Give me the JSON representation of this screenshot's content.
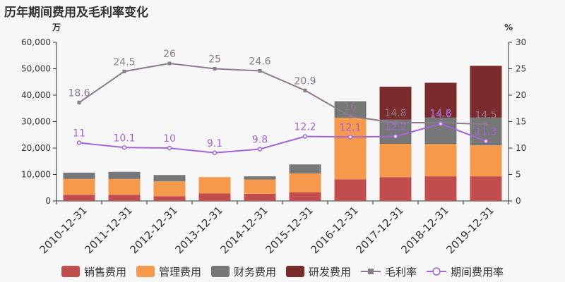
{
  "title": "历年期间费用及毛利率变化",
  "chart_data": {
    "type": "bar",
    "stacked": true,
    "categories": [
      "2010-12-31",
      "2011-12-31",
      "2012-12-31",
      "2013-12-31",
      "2014-12-31",
      "2015-12-31",
      "2016-12-31",
      "2017-12-31",
      "2018-12-31",
      "2019-12-31"
    ],
    "left_axis": {
      "unit": "万",
      "ylim": [
        0,
        60000
      ],
      "ticks": [
        "0",
        "10,000",
        "20,000",
        "30,000",
        "40,000",
        "50,000",
        "60,000"
      ]
    },
    "right_axis": {
      "unit": "%",
      "ylim": [
        0,
        30
      ],
      "ticks": [
        "0",
        "5",
        "10",
        "15",
        "20",
        "25",
        "30"
      ]
    },
    "series": [
      {
        "name": "销售费用",
        "type": "bar",
        "color": "#c04e4e",
        "values": [
          2300,
          2300,
          1800,
          2800,
          2700,
          3300,
          8200,
          9000,
          9300,
          9300
        ]
      },
      {
        "name": "管理费用",
        "type": "bar",
        "color": "#f59a4c",
        "values": [
          6000,
          6000,
          5600,
          6200,
          5400,
          7100,
          23300,
          12600,
          12200,
          11700
        ]
      },
      {
        "name": "财务费用",
        "type": "bar",
        "color": "#777777",
        "values": [
          2400,
          2700,
          2400,
          0,
          1200,
          3400,
          6200,
          9200,
          10000,
          10500
        ]
      },
      {
        "name": "研发费用",
        "type": "bar",
        "color": "#7b2b2b",
        "values": [
          0,
          0,
          0,
          0,
          0,
          0,
          0,
          12400,
          13200,
          19600
        ]
      },
      {
        "name": "毛利率",
        "type": "line",
        "axis": "right",
        "color": "#8c7b8e",
        "marker": "square",
        "values": [
          18.6,
          24.5,
          26,
          25,
          24.6,
          20.9,
          16,
          14.8,
          14.8,
          14.5
        ],
        "labels": [
          "18.6",
          "24.5",
          "26",
          "25",
          "24.6",
          "20.9",
          "16",
          "14.8",
          "14.8",
          "14.5"
        ]
      },
      {
        "name": "期间费用率",
        "type": "line",
        "axis": "right",
        "color": "#a463dd",
        "marker": "circle",
        "values": [
          11,
          10.1,
          10,
          9.1,
          9.8,
          12.2,
          12.1,
          12.2,
          14.6,
          11.3
        ],
        "labels": [
          "11",
          "10.1",
          "10",
          "9.1",
          "9.8",
          "12.2",
          "12.1",
          "12.2",
          "14.6",
          "11.3"
        ]
      }
    ]
  }
}
